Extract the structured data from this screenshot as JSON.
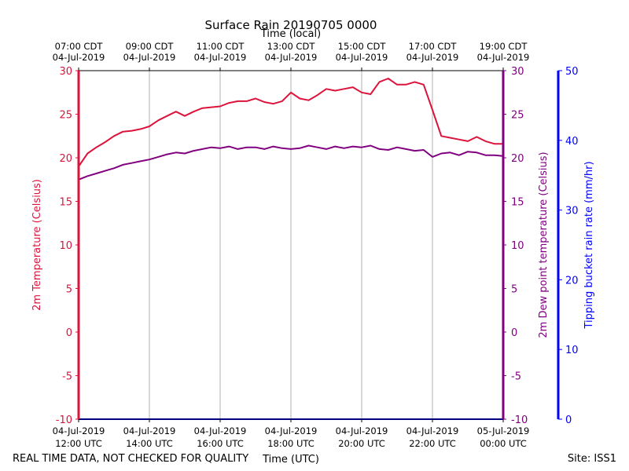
{
  "chart_data": {
    "type": "line",
    "title": "Surface Rain 20190705 0000",
    "xlabel_top": "Time (local)",
    "xlabel_bottom": "Time (UTC)",
    "x_utc_ticks": [
      {
        "hour": 12,
        "line1": "04-Jul-2019",
        "line2": "12:00 UTC"
      },
      {
        "hour": 14,
        "line1": "04-Jul-2019",
        "line2": "14:00 UTC"
      },
      {
        "hour": 16,
        "line1": "04-Jul-2019",
        "line2": "16:00 UTC"
      },
      {
        "hour": 18,
        "line1": "04-Jul-2019",
        "line2": "18:00 UTC"
      },
      {
        "hour": 20,
        "line1": "04-Jul-2019",
        "line2": "20:00 UTC"
      },
      {
        "hour": 22,
        "line1": "04-Jul-2019",
        "line2": "22:00 UTC"
      },
      {
        "hour": 24,
        "line1": "05-Jul-2019",
        "line2": "00:00 UTC"
      }
    ],
    "x_local_ticks": [
      {
        "hour": 12,
        "line1": "07:00 CDT",
        "line2": "04-Jul-2019"
      },
      {
        "hour": 14,
        "line1": "09:00 CDT",
        "line2": "04-Jul-2019"
      },
      {
        "hour": 16,
        "line1": "11:00 CDT",
        "line2": "04-Jul-2019"
      },
      {
        "hour": 18,
        "line1": "13:00 CDT",
        "line2": "04-Jul-2019"
      },
      {
        "hour": 20,
        "line1": "15:00 CDT",
        "line2": "04-Jul-2019"
      },
      {
        "hour": 22,
        "line1": "17:00 CDT",
        "line2": "04-Jul-2019"
      },
      {
        "hour": 24,
        "line1": "19:00 CDT",
        "line2": "04-Jul-2019"
      }
    ],
    "xlim_utc_hours": [
      12,
      24
    ],
    "ylim_temperature": [
      -10,
      30
    ],
    "ylim_rain": [
      0,
      50
    ],
    "y_temperature_ticks": [
      -10,
      -5,
      0,
      5,
      10,
      15,
      20,
      25,
      30
    ],
    "y_rain_ticks": [
      0,
      10,
      20,
      30,
      40,
      50
    ],
    "ylabel_left": "2m Temperature (Celsius)",
    "ylabel_right_inner": "2m Dew point temperature (Celsius)",
    "ylabel_right_outer": "Tipping bucket rain rate (mm/hr)",
    "grid": "vertical",
    "colors": {
      "temperature": "#dc143c",
      "dewpoint": "#800080",
      "rain": "#0000ff",
      "grid": "#b0b0b0"
    },
    "x_hours": [
      12.0,
      12.25,
      12.5,
      12.75,
      13.0,
      13.25,
      13.5,
      13.75,
      14.0,
      14.25,
      14.5,
      14.75,
      15.0,
      15.25,
      15.5,
      15.75,
      16.0,
      16.25,
      16.5,
      16.75,
      17.0,
      17.25,
      17.5,
      17.75,
      18.0,
      18.25,
      18.5,
      18.75,
      19.0,
      19.25,
      19.5,
      19.75,
      20.0,
      20.25,
      20.5,
      20.75,
      21.0,
      21.25,
      21.5,
      21.75,
      22.0,
      22.25,
      22.5,
      22.75,
      23.0,
      23.25,
      23.5,
      23.75,
      24.0
    ],
    "series": [
      {
        "values": [
          19.0,
          20.5,
          21.2,
          21.8,
          22.5,
          23.0,
          23.1,
          23.3,
          23.6,
          24.3,
          24.8,
          25.3,
          24.8,
          25.3,
          25.7,
          25.8,
          25.9,
          26.3,
          26.5,
          26.5,
          26.8,
          26.4,
          26.2,
          26.5,
          27.5,
          26.8,
          26.6,
          27.2,
          27.9,
          27.7,
          27.9,
          28.1,
          27.5,
          27.3,
          28.7,
          29.1,
          28.4,
          28.4,
          28.7,
          28.4,
          25.5,
          22.5,
          22.3,
          22.1,
          21.9,
          22.4,
          21.9,
          21.6,
          21.6
        ]
      },
      {
        "values": [
          17.5,
          17.9,
          18.2,
          18.5,
          18.8,
          19.2,
          19.4,
          19.6,
          19.8,
          20.1,
          20.4,
          20.6,
          20.5,
          20.8,
          21.0,
          21.2,
          21.1,
          21.3,
          21.0,
          21.2,
          21.2,
          21.0,
          21.3,
          21.1,
          21.0,
          21.1,
          21.4,
          21.2,
          21.0,
          21.3,
          21.1,
          21.3,
          21.2,
          21.4,
          21.0,
          20.9,
          21.2,
          21.0,
          20.8,
          20.9,
          20.1,
          20.5,
          20.6,
          20.3,
          20.7,
          20.6,
          20.3,
          20.3,
          20.2
        ]
      },
      {
        "values": [
          0,
          0,
          0,
          0,
          0,
          0,
          0,
          0,
          0,
          0,
          0,
          0,
          0,
          0,
          0,
          0,
          0,
          0,
          0,
          0,
          0,
          0,
          0,
          0,
          0,
          0,
          0,
          0,
          0,
          0,
          0,
          0,
          0,
          0,
          0,
          0,
          0,
          0,
          0,
          0,
          0,
          0,
          0,
          0,
          0,
          0,
          0,
          0,
          0
        ]
      }
    ]
  },
  "footer": {
    "note": "REAL TIME DATA, NOT CHECKED FOR QUALITY",
    "site": "Site: ISS1"
  }
}
